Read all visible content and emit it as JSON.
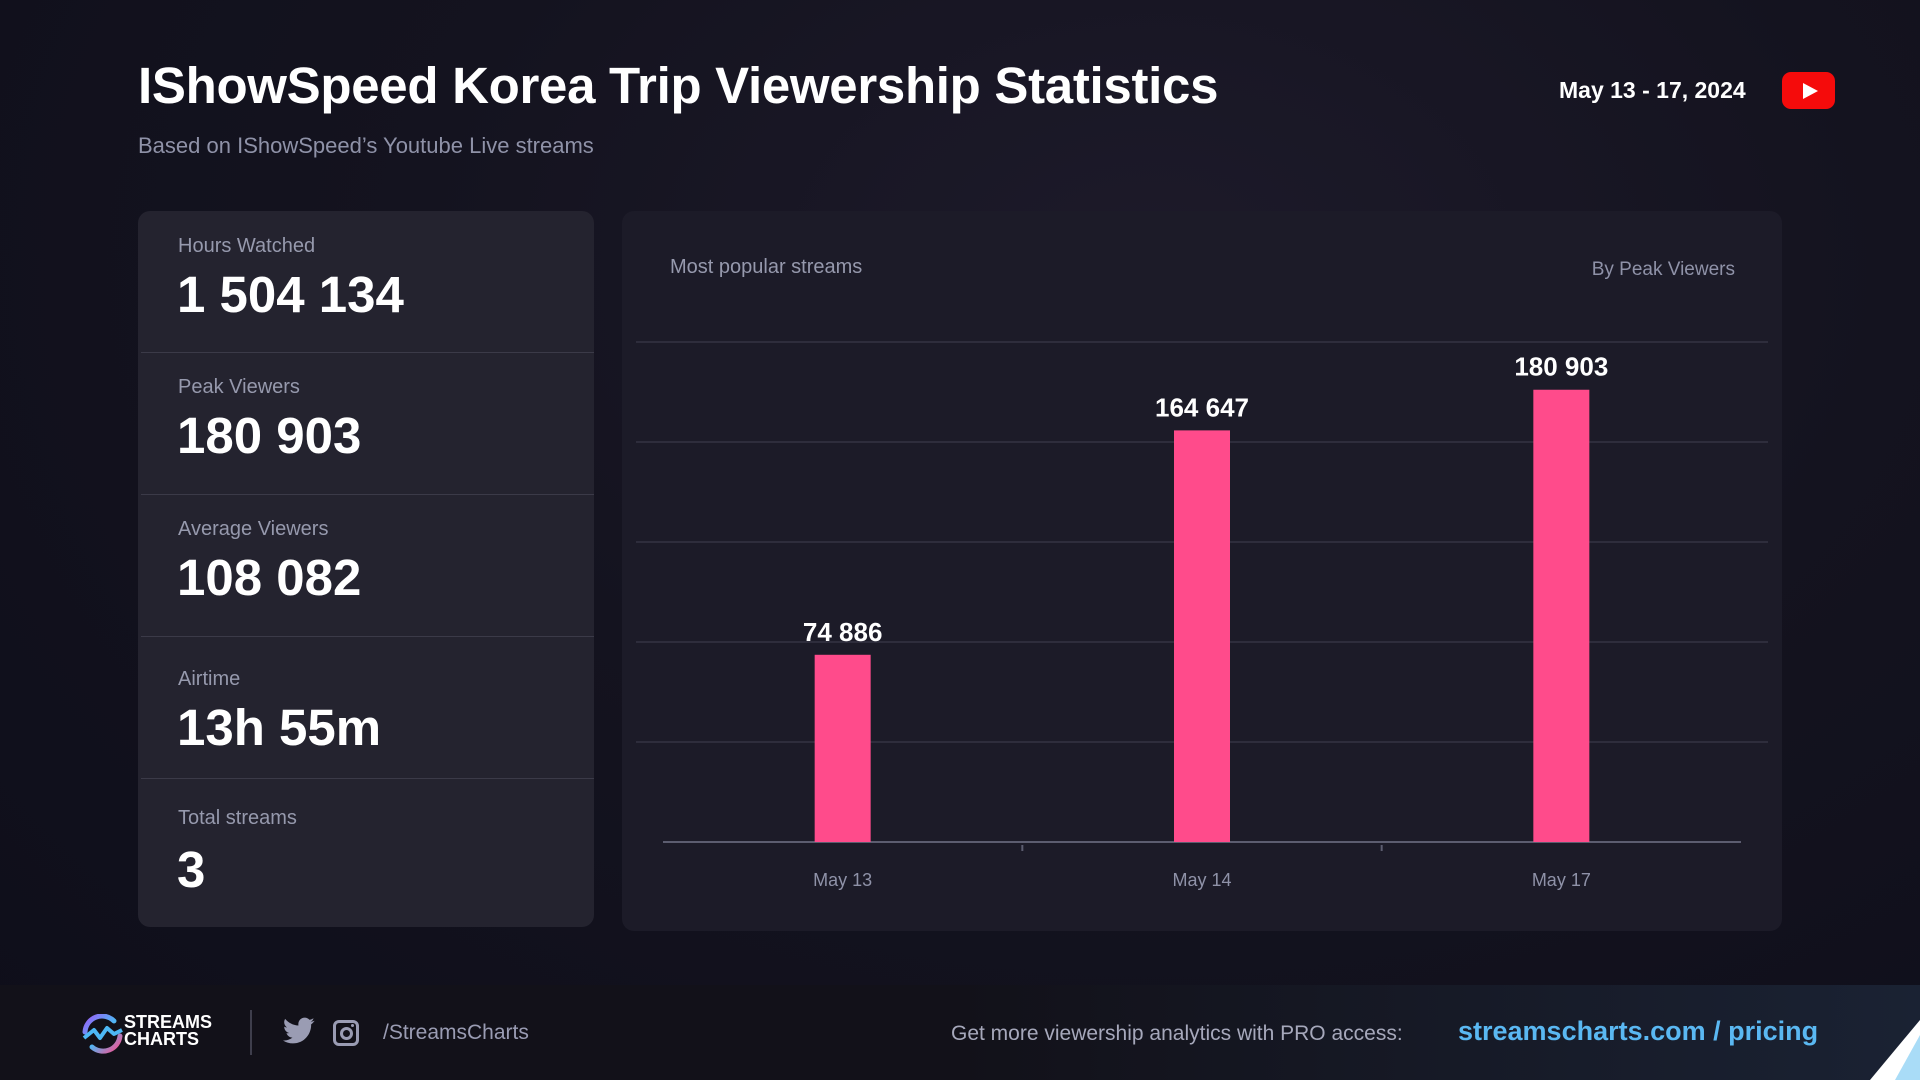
{
  "header": {
    "title": "IShowSpeed Korea Trip Viewership Statistics",
    "subtitle": "Based on IShowSpeed’s Youtube Live streams",
    "date_range": "May 13 - 17, 2024",
    "platform_icon": "youtube-icon"
  },
  "stats": [
    {
      "label": "Hours Watched",
      "value": "1 504 134"
    },
    {
      "label": "Peak Viewers",
      "value": "180 903"
    },
    {
      "label": "Average Viewers",
      "value": "108 082"
    },
    {
      "label": "Airtime",
      "value": "13h 55m"
    },
    {
      "label": "Total streams",
      "value": "3"
    }
  ],
  "chart_card": {
    "title": "Most popular streams",
    "sort_label": "By Peak Viewers"
  },
  "chart_data": {
    "type": "bar",
    "title": "Most popular streams",
    "subtitle": "By Peak Viewers",
    "categories": [
      "May 13",
      "May 14",
      "May 17"
    ],
    "values": [
      74886,
      164647,
      180903
    ],
    "value_labels": [
      "74 886",
      "164 647",
      "180 903"
    ],
    "ylim": [
      0,
      200000
    ],
    "gridlines": [
      40000,
      80000,
      120000,
      160000,
      200000
    ],
    "grid": true,
    "bar_color": "#ff4b8b",
    "xlabel": "",
    "ylabel": ""
  },
  "footer": {
    "brand_line1": "STREAMS",
    "brand_line2": "CHARTS",
    "social_handle": "/StreamsCharts",
    "promo_text": "Get more viewership analytics with PRO access:",
    "promo_link": "streamscharts.com / pricing"
  },
  "colors": {
    "accent": "#ff4b8b",
    "link": "#5ab8f2",
    "youtube": "#f50b0b"
  }
}
